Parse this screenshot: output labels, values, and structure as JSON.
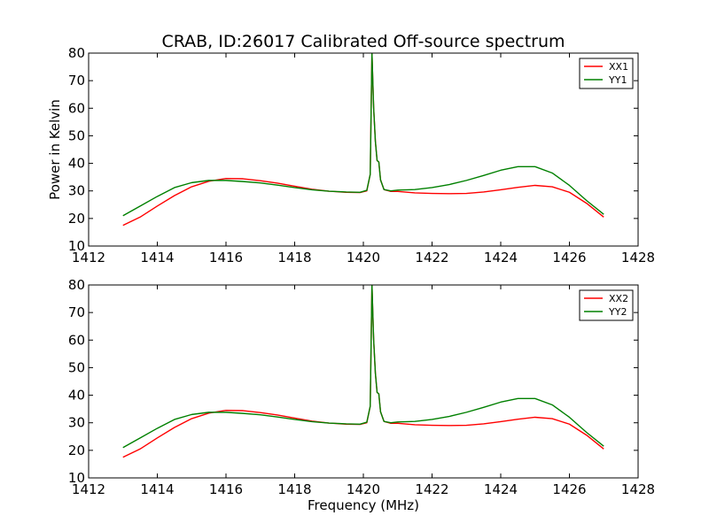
{
  "chart_data": [
    {
      "type": "line",
      "title": "CRAB, ID:26017 Calibrated Off-source spectrum",
      "xlabel": "",
      "ylabel": "Power in Kelvin",
      "xlim": [
        1412,
        1428
      ],
      "ylim": [
        10,
        80
      ],
      "xticks": [
        1412,
        1414,
        1416,
        1418,
        1420,
        1422,
        1424,
        1426,
        1428
      ],
      "yticks": [
        10,
        20,
        30,
        40,
        50,
        60,
        70,
        80
      ],
      "grid": false,
      "legend": "top-right",
      "series": [
        {
          "name": "XX1",
          "color": "#ff0000",
          "points": [
            [
              1413.0,
              17.5
            ],
            [
              1413.5,
              20.5
            ],
            [
              1414.0,
              24.5
            ],
            [
              1414.5,
              28.3
            ],
            [
              1415.0,
              31.5
            ],
            [
              1415.5,
              33.5
            ],
            [
              1416.0,
              34.5
            ],
            [
              1416.5,
              34.4
            ],
            [
              1417.0,
              33.7
            ],
            [
              1417.5,
              32.8
            ],
            [
              1418.0,
              31.7
            ],
            [
              1418.5,
              30.6
            ],
            [
              1419.0,
              29.9
            ],
            [
              1419.5,
              29.5
            ],
            [
              1419.9,
              29.4
            ],
            [
              1420.1,
              30.0
            ],
            [
              1420.2,
              36.0
            ],
            [
              1420.25,
              80.0
            ],
            [
              1420.3,
              60.0
            ],
            [
              1420.35,
              48.0
            ],
            [
              1420.4,
              41.0
            ],
            [
              1420.45,
              40.5
            ],
            [
              1420.5,
              34.0
            ],
            [
              1420.6,
              30.5
            ],
            [
              1420.8,
              29.8
            ],
            [
              1421.0,
              29.8
            ],
            [
              1421.5,
              29.3
            ],
            [
              1422.0,
              29.1
            ],
            [
              1422.5,
              29.0
            ],
            [
              1423.0,
              29.1
            ],
            [
              1423.5,
              29.6
            ],
            [
              1424.0,
              30.4
            ],
            [
              1424.5,
              31.3
            ],
            [
              1425.0,
              32.0
            ],
            [
              1425.5,
              31.5
            ],
            [
              1426.0,
              29.5
            ],
            [
              1426.5,
              25.5
            ],
            [
              1427.0,
              20.5
            ]
          ]
        },
        {
          "name": "YY1",
          "color": "#008000",
          "points": [
            [
              1413.0,
              21.0
            ],
            [
              1413.5,
              24.5
            ],
            [
              1414.0,
              28.0
            ],
            [
              1414.5,
              31.2
            ],
            [
              1415.0,
              33.0
            ],
            [
              1415.5,
              33.8
            ],
            [
              1416.0,
              33.8
            ],
            [
              1416.5,
              33.4
            ],
            [
              1417.0,
              32.9
            ],
            [
              1417.5,
              32.1
            ],
            [
              1418.0,
              31.2
            ],
            [
              1418.5,
              30.4
            ],
            [
              1419.0,
              29.9
            ],
            [
              1419.5,
              29.6
            ],
            [
              1419.9,
              29.5
            ],
            [
              1420.1,
              30.2
            ],
            [
              1420.2,
              36.0
            ],
            [
              1420.25,
              80.0
            ],
            [
              1420.3,
              60.0
            ],
            [
              1420.35,
              48.0
            ],
            [
              1420.4,
              41.0
            ],
            [
              1420.45,
              40.5
            ],
            [
              1420.5,
              34.0
            ],
            [
              1420.6,
              30.5
            ],
            [
              1420.8,
              30.0
            ],
            [
              1421.0,
              30.3
            ],
            [
              1421.5,
              30.5
            ],
            [
              1422.0,
              31.2
            ],
            [
              1422.5,
              32.3
            ],
            [
              1423.0,
              33.8
            ],
            [
              1423.5,
              35.6
            ],
            [
              1424.0,
              37.5
            ],
            [
              1424.5,
              38.8
            ],
            [
              1425.0,
              38.8
            ],
            [
              1425.5,
              36.5
            ],
            [
              1426.0,
              32.0
            ],
            [
              1426.5,
              26.5
            ],
            [
              1427.0,
              21.5
            ]
          ]
        }
      ]
    },
    {
      "type": "line",
      "title": "",
      "xlabel": "Frequency (MHz)",
      "ylabel": "",
      "xlim": [
        1412,
        1428
      ],
      "ylim": [
        10,
        80
      ],
      "xticks": [
        1412,
        1414,
        1416,
        1418,
        1420,
        1422,
        1424,
        1426,
        1428
      ],
      "yticks": [
        10,
        20,
        30,
        40,
        50,
        60,
        70,
        80
      ],
      "grid": false,
      "legend": "top-right",
      "series": [
        {
          "name": "XX2",
          "color": "#ff0000",
          "points": [
            [
              1413.0,
              17.5
            ],
            [
              1413.5,
              20.5
            ],
            [
              1414.0,
              24.5
            ],
            [
              1414.5,
              28.3
            ],
            [
              1415.0,
              31.5
            ],
            [
              1415.5,
              33.5
            ],
            [
              1416.0,
              34.5
            ],
            [
              1416.5,
              34.4
            ],
            [
              1417.0,
              33.7
            ],
            [
              1417.5,
              32.8
            ],
            [
              1418.0,
              31.7
            ],
            [
              1418.5,
              30.6
            ],
            [
              1419.0,
              29.9
            ],
            [
              1419.5,
              29.5
            ],
            [
              1419.9,
              29.4
            ],
            [
              1420.1,
              30.0
            ],
            [
              1420.2,
              36.0
            ],
            [
              1420.25,
              80.0
            ],
            [
              1420.3,
              60.0
            ],
            [
              1420.35,
              48.0
            ],
            [
              1420.4,
              41.0
            ],
            [
              1420.45,
              40.5
            ],
            [
              1420.5,
              34.0
            ],
            [
              1420.6,
              30.5
            ],
            [
              1420.8,
              29.8
            ],
            [
              1421.0,
              29.8
            ],
            [
              1421.5,
              29.3
            ],
            [
              1422.0,
              29.1
            ],
            [
              1422.5,
              29.0
            ],
            [
              1423.0,
              29.1
            ],
            [
              1423.5,
              29.6
            ],
            [
              1424.0,
              30.4
            ],
            [
              1424.5,
              31.3
            ],
            [
              1425.0,
              32.0
            ],
            [
              1425.5,
              31.5
            ],
            [
              1426.0,
              29.5
            ],
            [
              1426.5,
              25.5
            ],
            [
              1427.0,
              20.5
            ]
          ]
        },
        {
          "name": "YY2",
          "color": "#008000",
          "points": [
            [
              1413.0,
              21.0
            ],
            [
              1413.5,
              24.5
            ],
            [
              1414.0,
              28.0
            ],
            [
              1414.5,
              31.2
            ],
            [
              1415.0,
              33.0
            ],
            [
              1415.5,
              33.8
            ],
            [
              1416.0,
              33.8
            ],
            [
              1416.5,
              33.4
            ],
            [
              1417.0,
              32.9
            ],
            [
              1417.5,
              32.1
            ],
            [
              1418.0,
              31.2
            ],
            [
              1418.5,
              30.4
            ],
            [
              1419.0,
              29.9
            ],
            [
              1419.5,
              29.6
            ],
            [
              1419.9,
              29.5
            ],
            [
              1420.1,
              30.2
            ],
            [
              1420.2,
              36.0
            ],
            [
              1420.25,
              80.0
            ],
            [
              1420.3,
              60.0
            ],
            [
              1420.35,
              48.0
            ],
            [
              1420.4,
              41.0
            ],
            [
              1420.45,
              40.5
            ],
            [
              1420.5,
              34.0
            ],
            [
              1420.6,
              30.5
            ],
            [
              1420.8,
              30.0
            ],
            [
              1421.0,
              30.3
            ],
            [
              1421.5,
              30.5
            ],
            [
              1422.0,
              31.2
            ],
            [
              1422.5,
              32.3
            ],
            [
              1423.0,
              33.8
            ],
            [
              1423.5,
              35.6
            ],
            [
              1424.0,
              37.5
            ],
            [
              1424.5,
              38.8
            ],
            [
              1425.0,
              38.8
            ],
            [
              1425.5,
              36.5
            ],
            [
              1426.0,
              32.0
            ],
            [
              1426.5,
              26.5
            ],
            [
              1427.0,
              21.5
            ]
          ]
        }
      ]
    }
  ]
}
